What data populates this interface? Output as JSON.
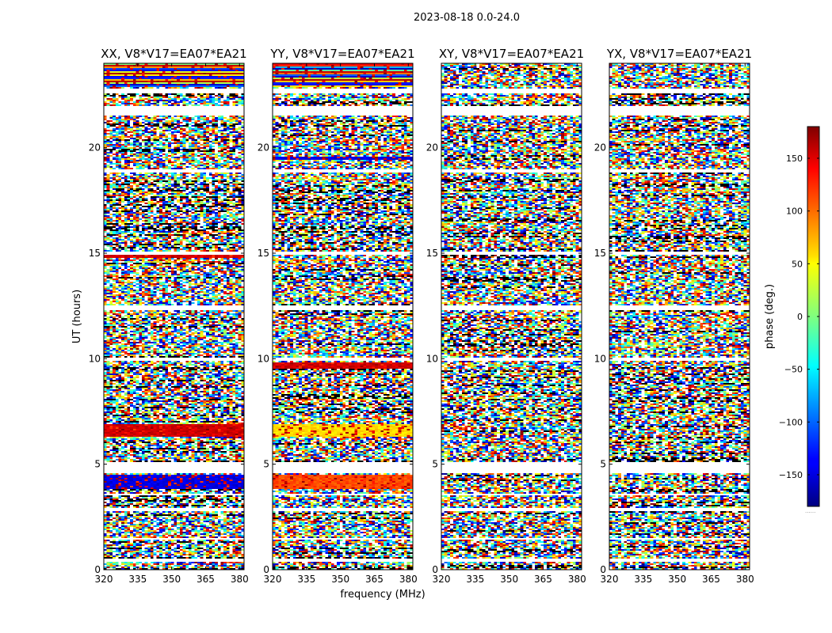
{
  "figure_title": "2023-08-18 0.0-24.0",
  "chart_data": {
    "type": "heatmap",
    "suptitle": "2023-08-18 0.0-24.0",
    "xlabel": "frequency (MHz)",
    "ylabel": "UT (hours)",
    "xlim": [
      320,
      382
    ],
    "ylim": [
      0,
      24
    ],
    "xticks": [
      320,
      335,
      350,
      365,
      380
    ],
    "yticks": [
      0,
      5,
      10,
      15,
      20
    ],
    "panels": [
      {
        "title": "XX, V8*V17=EA07*EA21",
        "coherent_bands": [
          {
            "t0": 22.9,
            "t1": 24.0,
            "label": "strong phase banding"
          },
          {
            "t0": 6.3,
            "t1": 6.9,
            "label": "red band"
          },
          {
            "t0": 14.8,
            "t1": 15.0,
            "label": "red band"
          },
          {
            "t0": 3.8,
            "t1": 4.5,
            "label": "blue band"
          }
        ]
      },
      {
        "title": "YY, V8*V17=EA07*EA21",
        "coherent_bands": [
          {
            "t0": 22.9,
            "t1": 24.0,
            "label": "strong phase banding"
          },
          {
            "t0": 6.3,
            "t1": 6.9,
            "label": "yellow band"
          },
          {
            "t0": 9.5,
            "t1": 9.8,
            "label": "red band"
          },
          {
            "t0": 19.4,
            "t1": 19.6,
            "label": "blue band"
          },
          {
            "t0": 3.8,
            "t1": 4.5,
            "label": "orange band"
          }
        ]
      },
      {
        "title": "XY, V8*V17=EA07*EA21",
        "coherent_bands": []
      },
      {
        "title": "YX, V8*V17=EA07*EA21",
        "coherent_bands": []
      }
    ],
    "flagged_time_ranges": [
      [
        21.5,
        22.0
      ],
      [
        22.6,
        22.8
      ],
      [
        18.8,
        18.95
      ],
      [
        14.95,
        15.1
      ],
      [
        12.3,
        12.5
      ],
      [
        9.9,
        10.05
      ],
      [
        5.0,
        5.1
      ],
      [
        4.6,
        5.0
      ],
      [
        3.5,
        3.6
      ],
      [
        1.5,
        1.4
      ],
      [
        0.5,
        0.4
      ],
      [
        2.9,
        2.8
      ]
    ],
    "colorbar": {
      "label": "phase (deg.)",
      "range": [
        -180,
        180
      ],
      "ticks": [
        -150,
        -100,
        -50,
        0,
        50,
        100,
        150
      ],
      "tick_labels": [
        "−150",
        "−100",
        "−50",
        "0",
        "50",
        "100",
        "150"
      ],
      "colormap": "jet"
    }
  },
  "ytick_labels": [
    "0",
    "5",
    "10",
    "15",
    "20"
  ],
  "xtick_labels": [
    "320",
    "335",
    "350",
    "365",
    "380"
  ],
  "colorbar_footer": "......"
}
